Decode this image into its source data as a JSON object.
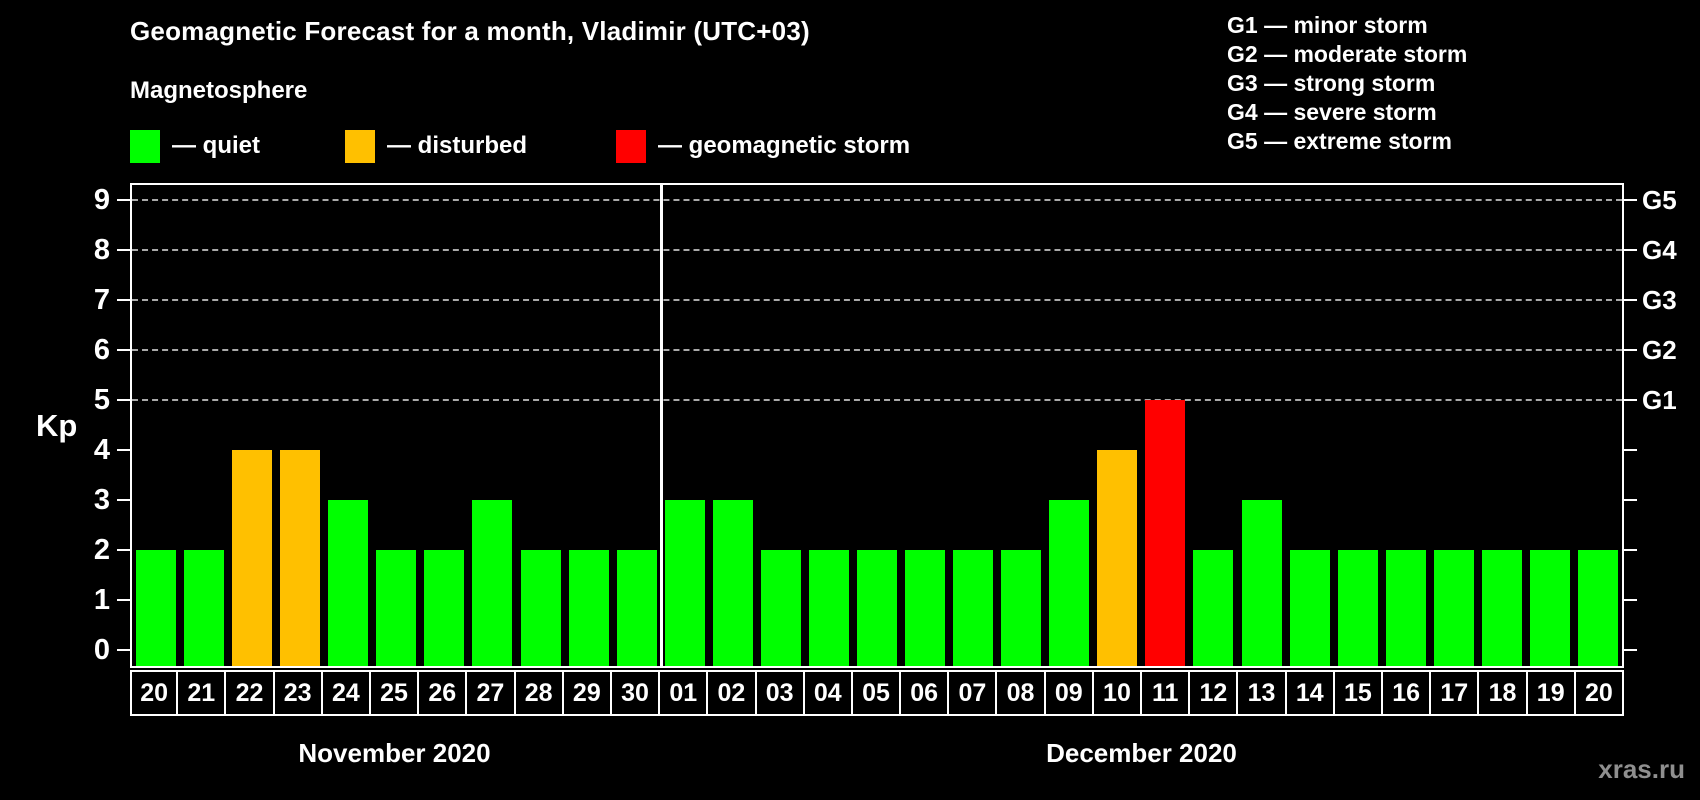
{
  "title": "Geomagnetic Forecast for a month, Vladimir (UTC+03)",
  "subtitle": "Magnetosphere",
  "legend": {
    "items": [
      {
        "key": "quiet",
        "label": "— quiet",
        "color": "#00ff00"
      },
      {
        "key": "disturbed",
        "label": "— disturbed",
        "color": "#ffc000"
      },
      {
        "key": "storm",
        "label": "— geomagnetic storm",
        "color": "#ff0000"
      }
    ]
  },
  "g_legend": [
    "G1 — minor storm",
    "G2 — moderate storm",
    "G3 — strong storm",
    "G4 — severe storm",
    "G5 — extreme storm"
  ],
  "watermark": "xras.ru",
  "chart_data": {
    "type": "bar",
    "title": "Geomagnetic Forecast for a month, Vladimir (UTC+03)",
    "ylabel": "Kp",
    "ylim": [
      0,
      9
    ],
    "yticks": [
      0,
      1,
      2,
      3,
      4,
      5,
      6,
      7,
      8,
      9
    ],
    "grid_dashed_at": [
      5,
      6,
      7,
      8,
      9
    ],
    "right_axis": [
      {
        "label": "G1",
        "kp": 5
      },
      {
        "label": "G2",
        "kp": 6
      },
      {
        "label": "G3",
        "kp": 7
      },
      {
        "label": "G4",
        "kp": 8
      },
      {
        "label": "G5",
        "kp": 9
      }
    ],
    "state_colors": {
      "quiet": "#00ff00",
      "disturbed": "#ffc000",
      "storm": "#ff0000"
    },
    "months": [
      {
        "label": "November 2020",
        "days": [
          {
            "day": "20",
            "kp": 2,
            "state": "quiet"
          },
          {
            "day": "21",
            "kp": 2,
            "state": "quiet"
          },
          {
            "day": "22",
            "kp": 4,
            "state": "disturbed"
          },
          {
            "day": "23",
            "kp": 4,
            "state": "disturbed"
          },
          {
            "day": "24",
            "kp": 3,
            "state": "quiet"
          },
          {
            "day": "25",
            "kp": 2,
            "state": "quiet"
          },
          {
            "day": "26",
            "kp": 2,
            "state": "quiet"
          },
          {
            "day": "27",
            "kp": 3,
            "state": "quiet"
          },
          {
            "day": "28",
            "kp": 2,
            "state": "quiet"
          },
          {
            "day": "29",
            "kp": 2,
            "state": "quiet"
          },
          {
            "day": "30",
            "kp": 2,
            "state": "quiet"
          }
        ]
      },
      {
        "label": "December 2020",
        "days": [
          {
            "day": "01",
            "kp": 3,
            "state": "quiet"
          },
          {
            "day": "02",
            "kp": 3,
            "state": "quiet"
          },
          {
            "day": "03",
            "kp": 2,
            "state": "quiet"
          },
          {
            "day": "04",
            "kp": 2,
            "state": "quiet"
          },
          {
            "day": "05",
            "kp": 2,
            "state": "quiet"
          },
          {
            "day": "06",
            "kp": 2,
            "state": "quiet"
          },
          {
            "day": "07",
            "kp": 2,
            "state": "quiet"
          },
          {
            "day": "08",
            "kp": 2,
            "state": "quiet"
          },
          {
            "day": "09",
            "kp": 3,
            "state": "quiet"
          },
          {
            "day": "10",
            "kp": 4,
            "state": "disturbed"
          },
          {
            "day": "11",
            "kp": 5,
            "state": "storm"
          },
          {
            "day": "12",
            "kp": 2,
            "state": "quiet"
          },
          {
            "day": "13",
            "kp": 3,
            "state": "quiet"
          },
          {
            "day": "14",
            "kp": 2,
            "state": "quiet"
          },
          {
            "day": "15",
            "kp": 2,
            "state": "quiet"
          },
          {
            "day": "16",
            "kp": 2,
            "state": "quiet"
          },
          {
            "day": "17",
            "kp": 2,
            "state": "quiet"
          },
          {
            "day": "18",
            "kp": 2,
            "state": "quiet"
          },
          {
            "day": "19",
            "kp": 2,
            "state": "quiet"
          },
          {
            "day": "20",
            "kp": 2,
            "state": "quiet"
          }
        ]
      }
    ]
  }
}
